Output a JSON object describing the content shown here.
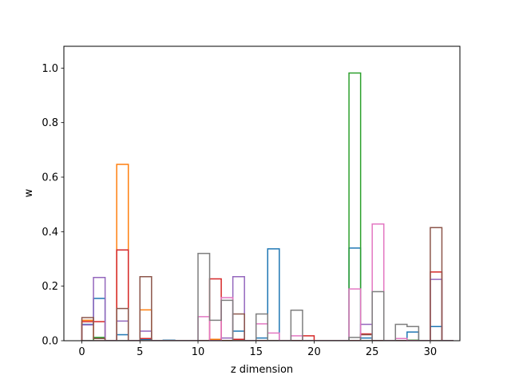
{
  "chart_data": {
    "type": "bar",
    "style": "step-histogram (unfilled outline per series)",
    "xlabel": "z dimension",
    "ylabel": "w",
    "xlim": [
      -1.55,
      32.55
    ],
    "ylim": [
      0,
      1.08
    ],
    "xticks": [
      "0",
      "5",
      "10",
      "15",
      "20",
      "25",
      "30"
    ],
    "yticks": [
      "0.0",
      "0.2",
      "0.4",
      "0.6",
      "0.8",
      "1.0"
    ],
    "grid": false,
    "legend": "none",
    "x": [
      0,
      1,
      2,
      3,
      4,
      5,
      6,
      7,
      8,
      9,
      10,
      11,
      12,
      13,
      14,
      15,
      16,
      17,
      18,
      19,
      20,
      21,
      22,
      23,
      24,
      25,
      26,
      27,
      28,
      29,
      30,
      31
    ],
    "series": [
      {
        "color": "#1f77b4",
        "values": [
          0.06,
          0.155,
          0,
          0.022,
          0,
          0.005,
          0,
          0.002,
          0,
          0,
          0,
          0,
          0,
          0.035,
          0,
          0.01,
          0.337,
          0,
          0,
          0,
          0,
          0,
          0,
          0.34,
          0.01,
          0,
          0,
          0,
          0.032,
          0,
          0.052,
          0
        ]
      },
      {
        "color": "#ff7f0e",
        "values": [
          0.075,
          0,
          0,
          0.647,
          0,
          0.113,
          0,
          0,
          0,
          0,
          0,
          0.005,
          0,
          0,
          0,
          0,
          0,
          0,
          0,
          0,
          0,
          0,
          0,
          0,
          0,
          0,
          0,
          0,
          0,
          0,
          0,
          0
        ]
      },
      {
        "color": "#2ca02c",
        "values": [
          0,
          0.012,
          0,
          0,
          0,
          0,
          0,
          0,
          0,
          0,
          0,
          0,
          0,
          0,
          0,
          0,
          0,
          0,
          0,
          0,
          0,
          0,
          0,
          0.982,
          0,
          0,
          0,
          0,
          0.002,
          0,
          0,
          0
        ]
      },
      {
        "color": "#d62728",
        "values": [
          0.07,
          0.07,
          0,
          0.333,
          0,
          0.008,
          0,
          0,
          0,
          0,
          0,
          0.227,
          0,
          0.005,
          0,
          0,
          0,
          0,
          0,
          0.018,
          0,
          0,
          0,
          0,
          0.025,
          0,
          0,
          0,
          0,
          0,
          0.252,
          0
        ]
      },
      {
        "color": "#9467bd",
        "values": [
          0.058,
          0.232,
          0,
          0.072,
          0,
          0.035,
          0,
          0,
          0,
          0,
          0,
          0,
          0.01,
          0.235,
          0,
          0,
          0,
          0,
          0,
          0,
          0,
          0,
          0,
          0,
          0.06,
          0,
          0,
          0,
          0,
          0,
          0.225,
          0
        ]
      },
      {
        "color": "#8c564b",
        "values": [
          0.085,
          0.008,
          0,
          0.118,
          0,
          0.235,
          0,
          0,
          0,
          0,
          0,
          0,
          0,
          0.098,
          0,
          0,
          0,
          0,
          0,
          0,
          0,
          0,
          0,
          0,
          0.022,
          0,
          0,
          0,
          0,
          0,
          0.415,
          0
        ]
      },
      {
        "color": "#e377c2",
        "values": [
          0,
          0,
          0,
          0,
          0,
          0,
          0,
          0,
          0,
          0,
          0.088,
          0,
          0.158,
          0,
          0,
          0.062,
          0.028,
          0,
          0.018,
          0,
          0,
          0,
          0,
          0.19,
          0,
          0.428,
          0,
          0.008,
          0,
          0,
          0,
          0
        ]
      },
      {
        "color": "#7f7f7f",
        "values": [
          0,
          0,
          0,
          0,
          0,
          0,
          0,
          0,
          0,
          0,
          0.32,
          0.075,
          0.148,
          0,
          0,
          0.098,
          0,
          0,
          0.112,
          0,
          0,
          0,
          0,
          0.012,
          0,
          0.18,
          0,
          0.06,
          0.052,
          0,
          0,
          0
        ]
      }
    ]
  }
}
